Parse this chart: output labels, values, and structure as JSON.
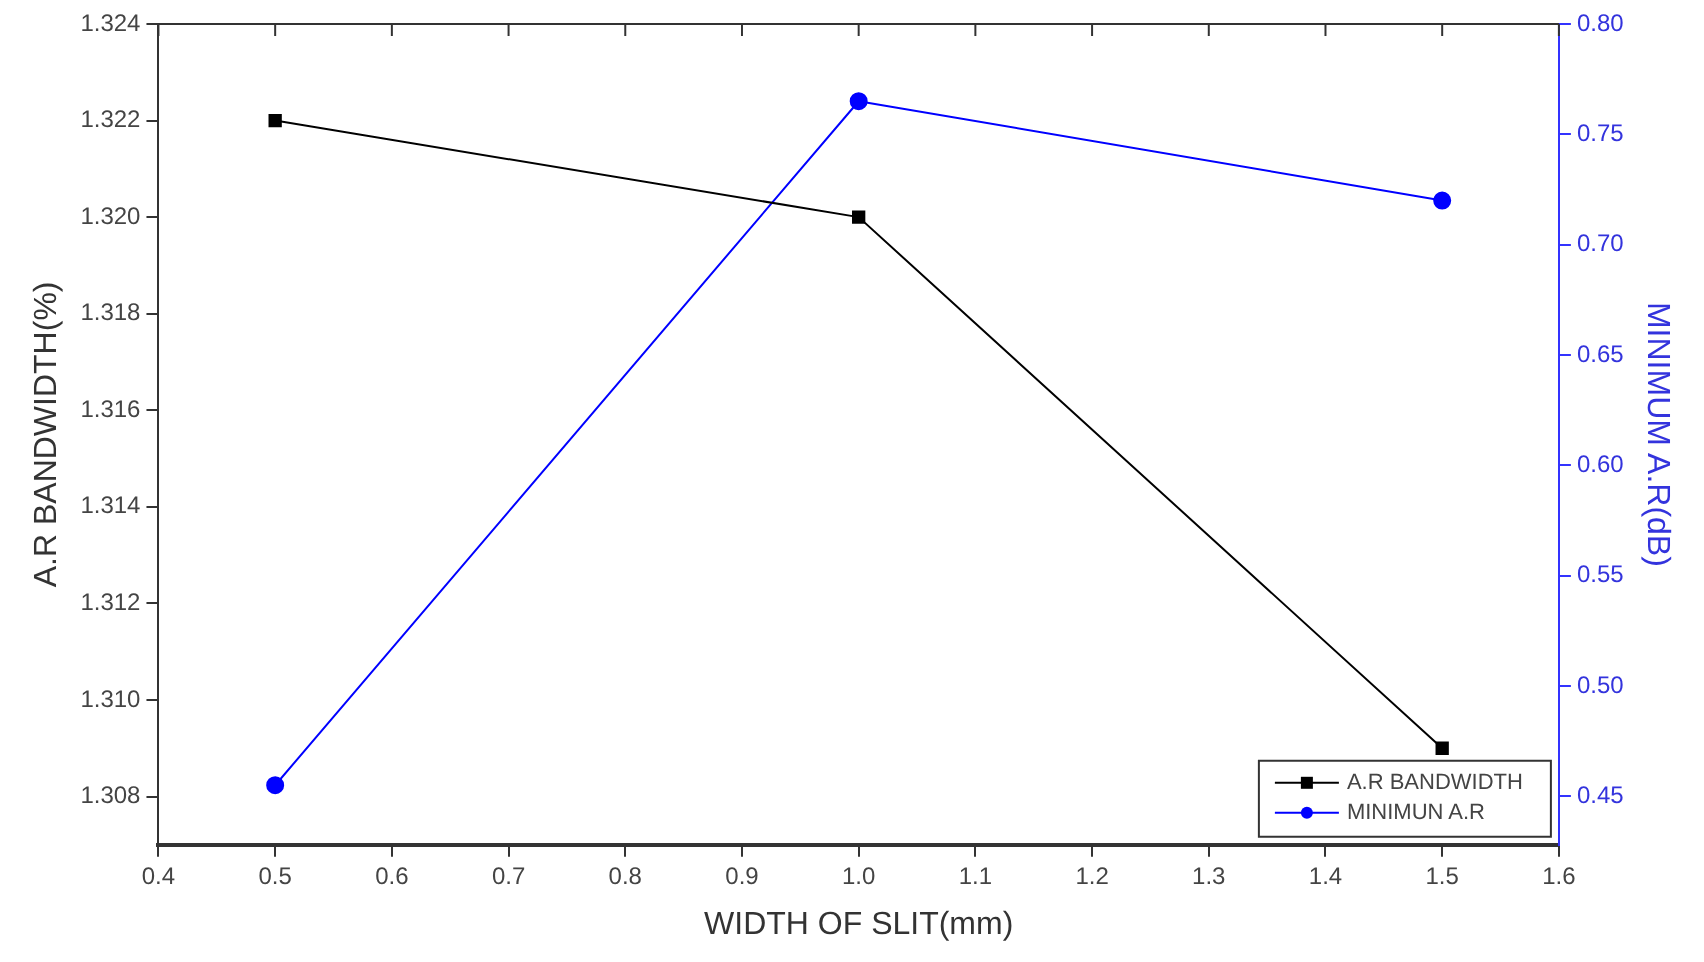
{
  "chart_data": {
    "type": "line",
    "xlabel": "WIDTH OF SLIT(mm)",
    "ylabel": "A.R BANDWIDTH(%)",
    "y2label": "MINIMUM A.R(dB)",
    "x": [
      0.5,
      1.0,
      1.5
    ],
    "series": [
      {
        "name": "A.R BANDWIDTH",
        "color": "#000000",
        "values": [
          1.322,
          1.32,
          1.309
        ],
        "marker": "square"
      },
      {
        "name": "MINIMUN A.R",
        "color": "#0000ff",
        "values": [
          0.455,
          0.765,
          0.72
        ],
        "marker": "circle",
        "axis": "y2"
      }
    ],
    "xlim": [
      0.4,
      1.6
    ],
    "xticks": [
      {
        "value": 0.4,
        "label": "0.4"
      },
      {
        "value": 0.5,
        "label": "0.5"
      },
      {
        "value": 0.6,
        "label": "0.6"
      },
      {
        "value": 0.7,
        "label": "0.7"
      },
      {
        "value": 0.8,
        "label": "0.8"
      },
      {
        "value": 0.9,
        "label": "0.9"
      },
      {
        "value": 1.0,
        "label": "1.0"
      },
      {
        "value": 1.1,
        "label": "1.1"
      },
      {
        "value": 1.2,
        "label": "1.2"
      },
      {
        "value": 1.3,
        "label": "1.3"
      },
      {
        "value": 1.4,
        "label": "1.4"
      },
      {
        "value": 1.5,
        "label": "1.5"
      },
      {
        "value": 1.6,
        "label": "1.6"
      }
    ],
    "ylim": [
      1.307,
      1.324
    ],
    "yticks": [
      1.308,
      {
        "value": 1.31,
        "label": "1.310"
      },
      1.312,
      1.314,
      1.316,
      1.318,
      {
        "value": 1.32,
        "label": "1.320"
      },
      1.322,
      1.324
    ],
    "y2lim": [
      0.428,
      0.8
    ],
    "y2ticks": [
      0.45,
      {
        "value": 0.5,
        "label": "0.50"
      },
      0.55,
      {
        "value": 0.6,
        "label": "0.60"
      },
      0.65,
      {
        "value": 0.7,
        "label": "0.70"
      },
      0.75,
      {
        "value": 0.8,
        "label": "0.80"
      }
    ],
    "grid": false,
    "legend": "bottom right",
    "line_style": "solid"
  }
}
